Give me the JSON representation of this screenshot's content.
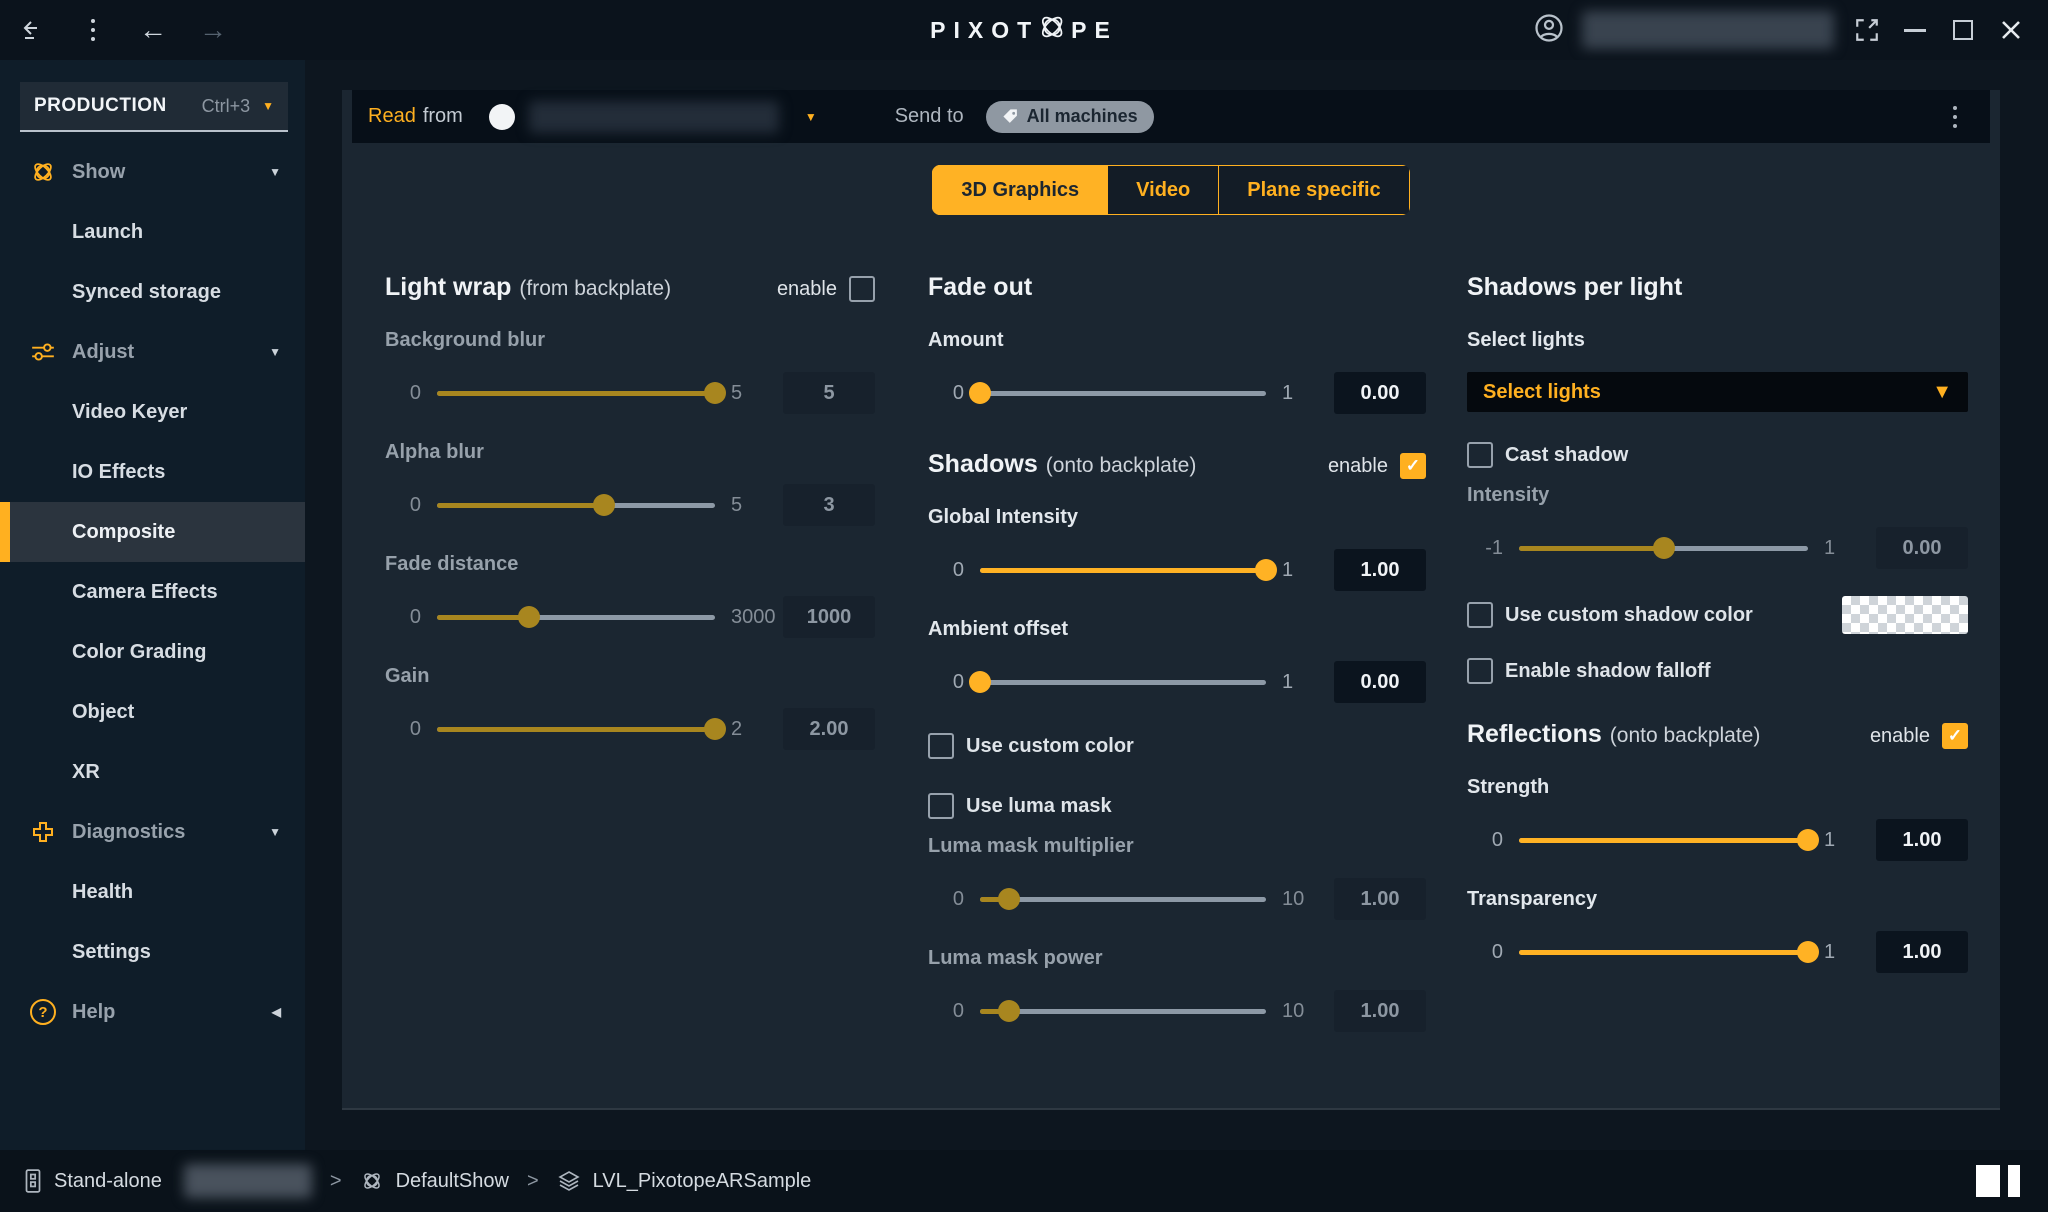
{
  "titlebar": {
    "logo_left": "PIXOT",
    "logo_right": "PE"
  },
  "icons": {
    "check": "✓",
    "caret_down": "▼",
    "caret_left": "◀",
    "arrow_back": "←",
    "arrow_forward": "→",
    "separator": ">",
    "question": "?"
  },
  "sidebar": {
    "mode": {
      "label": "PRODUCTION",
      "shortcut": "Ctrl+3"
    },
    "items": [
      {
        "label": "Show"
      },
      {
        "label": "Launch"
      },
      {
        "label": "Synced storage"
      },
      {
        "label": "Adjust"
      },
      {
        "label": "Video Keyer"
      },
      {
        "label": "IO Effects"
      },
      {
        "label": "Composite"
      },
      {
        "label": "Camera Effects"
      },
      {
        "label": "Color Grading"
      },
      {
        "label": "Object"
      },
      {
        "label": "XR"
      },
      {
        "label": "Diagnostics"
      },
      {
        "label": "Health"
      },
      {
        "label": "Settings"
      },
      {
        "label": "Help"
      }
    ]
  },
  "readbar": {
    "read": "Read",
    "from": "from",
    "send_to": "Send to",
    "target": "All machines"
  },
  "tabs": [
    {
      "label": "3D Graphics",
      "active": true
    },
    {
      "label": "Video",
      "active": false
    },
    {
      "label": "Plane specific",
      "active": false
    }
  ],
  "light_wrap": {
    "title": "Light wrap",
    "suffix": "(from backplate)",
    "enable_label": "enable",
    "enabled": false,
    "sliders": [
      {
        "label": "Background blur",
        "min": "0",
        "max": "5",
        "value": "5",
        "pct": 100
      },
      {
        "label": "Alpha blur",
        "min": "0",
        "max": "5",
        "value": "3",
        "pct": 60
      },
      {
        "label": "Fade distance",
        "min": "0",
        "max": "3000",
        "value": "1000",
        "pct": 33
      },
      {
        "label": "Gain",
        "min": "0",
        "max": "2",
        "value": "2.00",
        "pct": 100
      }
    ]
  },
  "fade_out": {
    "title": "Fade out",
    "amount": {
      "label": "Amount",
      "min": "0",
      "max": "1",
      "value": "0.00",
      "pct": 0
    }
  },
  "shadows": {
    "title": "Shadows",
    "suffix": "(onto backplate)",
    "enable_label": "enable",
    "enabled": true,
    "global_intensity": {
      "label": "Global Intensity",
      "min": "0",
      "max": "1",
      "value": "1.00",
      "pct": 100
    },
    "ambient_offset": {
      "label": "Ambient offset",
      "min": "0",
      "max": "1",
      "value": "0.00",
      "pct": 0
    },
    "use_custom_color": {
      "label": "Use custom color",
      "checked": false
    },
    "use_luma_mask": {
      "label": "Use luma mask",
      "checked": false
    },
    "luma_mask_multiplier": {
      "label": "Luma mask multiplier",
      "min": "0",
      "max": "10",
      "value": "1.00",
      "pct": 10
    },
    "luma_mask_power": {
      "label": "Luma mask power",
      "min": "0",
      "max": "10",
      "value": "1.00",
      "pct": 10
    }
  },
  "shadows_per_light": {
    "title": "Shadows per light",
    "select_label": "Select lights",
    "dropdown_value": "Select lights",
    "cast_shadow": {
      "label": "Cast shadow",
      "checked": false
    },
    "intensity": {
      "label": "Intensity",
      "min": "-1",
      "max": "1",
      "value": "0.00",
      "pct": 50
    },
    "use_custom_shadow_color": {
      "label": "Use custom shadow color",
      "checked": false
    },
    "enable_shadow_falloff": {
      "label": "Enable shadow falloff",
      "checked": false
    }
  },
  "reflections": {
    "title": "Reflections",
    "suffix": "(onto backplate)",
    "enable_label": "enable",
    "enabled": true,
    "strength": {
      "label": "Strength",
      "min": "0",
      "max": "1",
      "value": "1.00",
      "pct": 100
    },
    "transparency": {
      "label": "Transparency",
      "min": "0",
      "max": "1",
      "value": "1.00",
      "pct": 100
    }
  },
  "statusbar": {
    "mode": "Stand-alone",
    "show": "DefaultShow",
    "level": "LVL_PixotopeARSample"
  },
  "colors": {
    "accent": "#FFB020",
    "muted_gold": "#A8861F",
    "track_gray": "#8D99A6",
    "card": "#1B2631"
  }
}
